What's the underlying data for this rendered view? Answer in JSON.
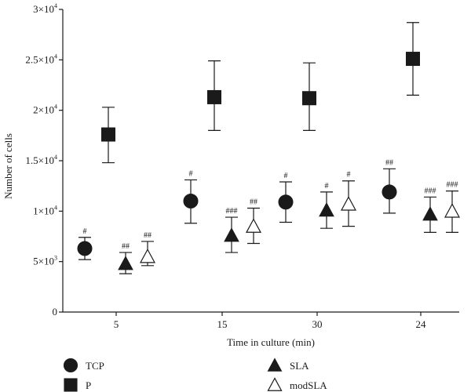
{
  "chart_data": {
    "type": "scatter",
    "xlabel": "Time in culture (min)",
    "ylabel": "Number of cells",
    "categories": [
      "5",
      "15",
      "30",
      "24"
    ],
    "ylim": [
      0,
      30000
    ],
    "y_ticks": [
      {
        "value": 0,
        "mantissa": "0",
        "exp": ""
      },
      {
        "value": 5000,
        "mantissa": "5×10",
        "exp": "3"
      },
      {
        "value": 10000,
        "mantissa": "1×10",
        "exp": "4"
      },
      {
        "value": 15000,
        "mantissa": "1.5×10",
        "exp": "4"
      },
      {
        "value": 20000,
        "mantissa": "2×10",
        "exp": "4"
      },
      {
        "value": 25000,
        "mantissa": "2.5×10",
        "exp": "4"
      },
      {
        "value": 30000,
        "mantissa": "3×10",
        "exp": "4"
      }
    ],
    "grid": false,
    "legend_position": "bottom",
    "series": [
      {
        "name": "TCP",
        "marker": "circle",
        "color": "#1a1a1a",
        "values": [
          6300,
          11000,
          10900,
          11900
        ],
        "err_low": [
          5200,
          8800,
          8900,
          9800
        ],
        "err_high": [
          7400,
          13100,
          12900,
          14200
        ],
        "labels": [
          "#",
          "#",
          "#",
          "##"
        ]
      },
      {
        "name": "P",
        "marker": "square",
        "color": "#1a1a1a",
        "values": [
          17600,
          21300,
          21200,
          25100
        ],
        "err_low": [
          14800,
          18000,
          18000,
          21500
        ],
        "err_high": [
          20300,
          24900,
          24700,
          28700
        ],
        "labels": [
          "",
          "",
          "",
          ""
        ]
      },
      {
        "name": "SLA",
        "marker": "triangle-filled",
        "color": "#1a1a1a",
        "values": [
          4800,
          7600,
          10100,
          9700
        ],
        "err_low": [
          3800,
          5900,
          8300,
          7900
        ],
        "err_high": [
          5900,
          9400,
          11900,
          11400
        ],
        "labels": [
          "##",
          "###",
          "#",
          "###"
        ]
      },
      {
        "name": "modSLA",
        "marker": "triangle-open",
        "color": "#1a1a1a",
        "values": [
          5500,
          8500,
          10700,
          10000
        ],
        "err_low": [
          4600,
          6800,
          8500,
          7900
        ],
        "err_high": [
          7000,
          10300,
          13000,
          12000
        ],
        "labels": [
          "##",
          "##",
          "#",
          "###"
        ]
      }
    ]
  }
}
